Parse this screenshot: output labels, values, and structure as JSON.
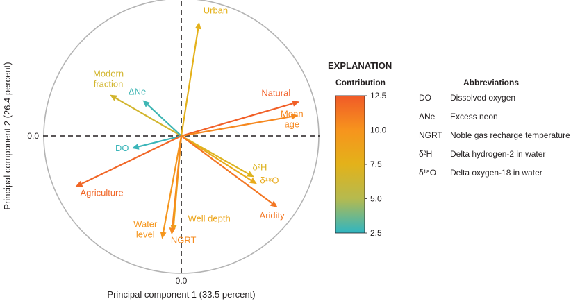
{
  "chart_data": {
    "type": "biplot",
    "xlabel": "Principal component 1 (33.5 percent)",
    "ylabel": "Principal component 2 (26.4 percent)",
    "x_tick_label": "0.0",
    "y_tick_label": "0.0",
    "xlim": [
      -1,
      1
    ],
    "ylim": [
      -1,
      1
    ],
    "vectors": [
      {
        "name": "Urban",
        "label_lines": [
          "Urban"
        ],
        "x": 0.13,
        "y": 0.83,
        "contribution": 7.6
      },
      {
        "name": "Modern fraction",
        "label_lines": [
          "Modern",
          "fraction"
        ],
        "x": -0.52,
        "y": 0.3,
        "contribution": 6.6
      },
      {
        "name": "ΔNe",
        "label_lines": [
          "ΔNe"
        ],
        "x": -0.28,
        "y": 0.26,
        "contribution": 2.8
      },
      {
        "name": "Natural",
        "label_lines": [
          "Natural"
        ],
        "x": 0.86,
        "y": 0.25,
        "contribution": 12.3
      },
      {
        "name": "Mean age",
        "label_lines": [
          "Mean",
          "age"
        ],
        "x": 0.85,
        "y": 0.15,
        "contribution": 10.5
      },
      {
        "name": "DO",
        "label_lines": [
          "DO"
        ],
        "x": -0.36,
        "y": -0.09,
        "contribution": 2.7
      },
      {
        "name": "Agriculture",
        "label_lines": [
          "Agriculture"
        ],
        "x": -0.77,
        "y": -0.37,
        "contribution": 12.0
      },
      {
        "name": "δ²H",
        "label_lines": [
          "δ²H"
        ],
        "x": 0.53,
        "y": -0.3,
        "contribution": 7.2
      },
      {
        "name": "δ¹⁸O",
        "label_lines": [
          "δ¹⁸O"
        ],
        "x": 0.55,
        "y": -0.35,
        "contribution": 8.2
      },
      {
        "name": "Aridity",
        "label_lines": [
          "Aridity"
        ],
        "x": 0.7,
        "y": -0.52,
        "contribution": 11.3
      },
      {
        "name": "Water level",
        "label_lines": [
          "Water",
          "level"
        ],
        "x": -0.14,
        "y": -0.75,
        "contribution": 9.8
      },
      {
        "name": "Well depth",
        "label_lines": [
          "Well depth"
        ],
        "x": -0.06,
        "y": -0.7,
        "contribution": 8.6
      },
      {
        "name": "NGRT",
        "label_lines": [
          "NGRT"
        ],
        "x": -0.07,
        "y": -0.72,
        "contribution": 10.4
      }
    ],
    "colorbar": {
      "title": "Contribution",
      "min": 2.5,
      "max": 12.5,
      "ticks": [
        "12.5",
        "10.0",
        "7.5",
        "5.0",
        "2.5"
      ],
      "colors": [
        "#f05a28",
        "#f7941d",
        "#e3b21a",
        "#b5ba4f",
        "#2fb5c2"
      ]
    },
    "legend_title": "EXPLANATION"
  },
  "abbreviations": {
    "title": "Abbreviations",
    "rows": [
      {
        "abbr": "DO",
        "desc": "Dissolved oxygen"
      },
      {
        "abbr": "ΔNe",
        "desc": "Excess neon"
      },
      {
        "abbr": "NGRT",
        "desc": "Noble gas recharge temperature"
      },
      {
        "abbr": "δ²H",
        "desc": "Delta hydrogen-2 in water"
      },
      {
        "abbr": "δ¹⁸O",
        "desc": "Delta oxygen-18 in water"
      }
    ]
  }
}
